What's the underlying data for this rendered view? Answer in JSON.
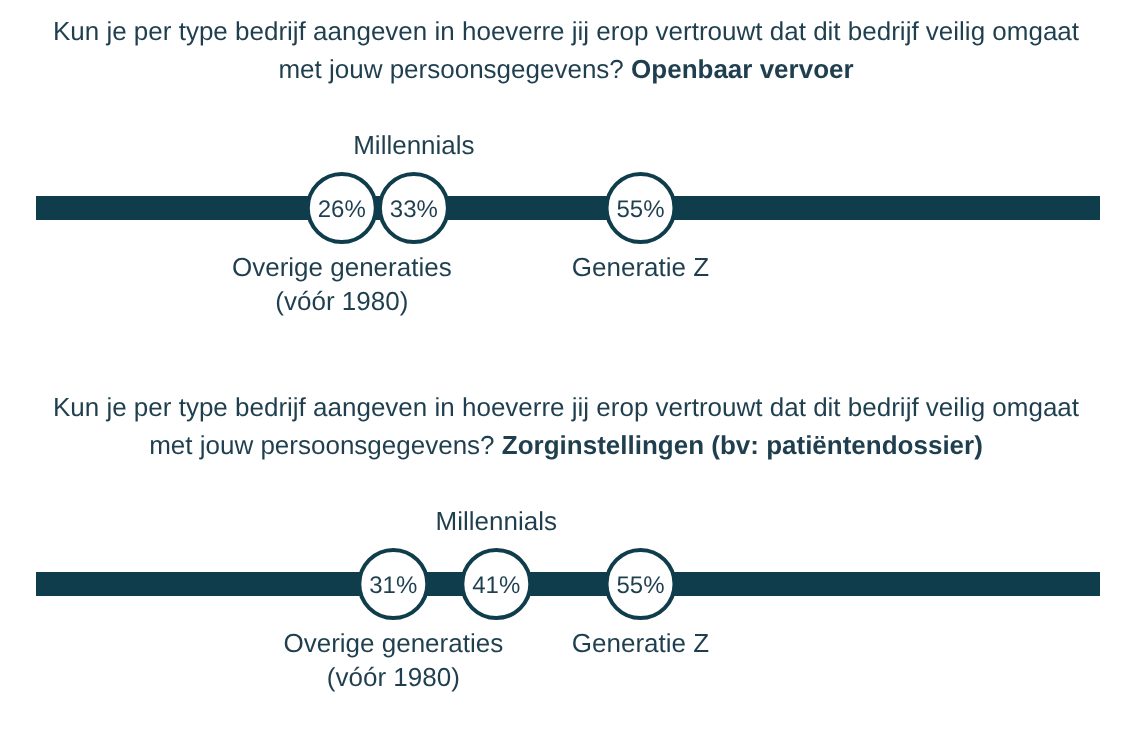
{
  "chart_data": [
    {
      "type": "other",
      "title": "Kun je per type bedrijf aangeven in hoeverre jij erop vertrouwt dat dit bedrijf veilig omgaat met jouw persoonsgegevens?",
      "subtitle": "Openbaar vervoer",
      "categories": [
        "Overige generaties (vóór 1980)",
        "Millennials",
        "Generatie Z"
      ],
      "values": [
        26,
        33,
        55
      ],
      "value_labels": [
        "26%",
        "33%",
        "55%"
      ],
      "color": "#0f3d4c"
    },
    {
      "type": "other",
      "title": "Kun je per type bedrijf aangeven in hoeverre jij erop vertrouwt dat dit bedrijf veilig omgaat met jouw persoonsgegevens?",
      "subtitle": "Zorginstellingen (bv: patiëntendossier)",
      "categories": [
        "Overige generaties (vóór 1980)",
        "Millennials",
        "Generatie Z"
      ],
      "values": [
        31,
        41,
        55
      ],
      "value_labels": [
        "31%",
        "41%",
        "55%"
      ],
      "color": "#0f3d4c"
    }
  ]
}
